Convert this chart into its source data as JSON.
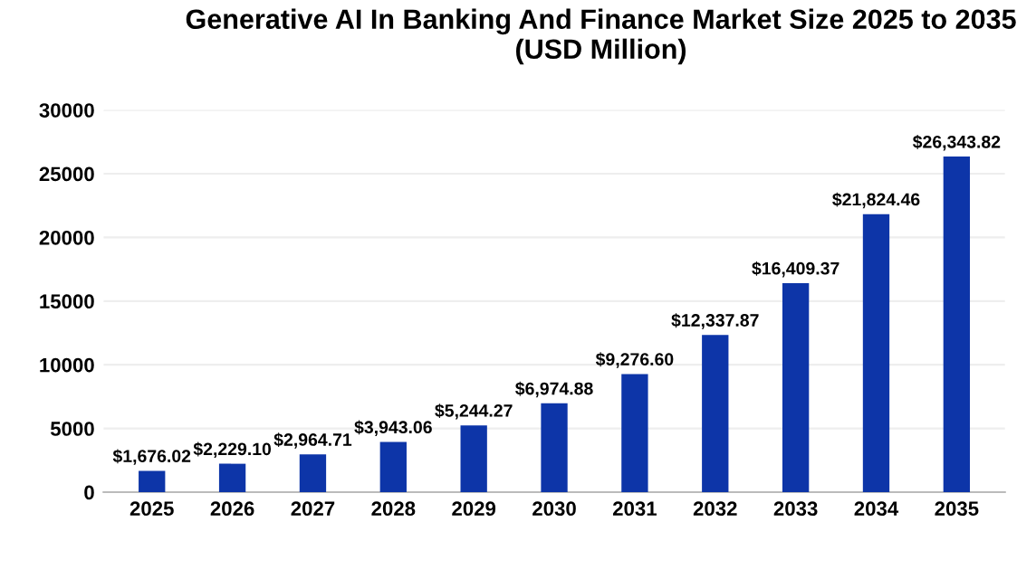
{
  "chart_data": {
    "type": "bar",
    "title": "Generative AI In Banking And Finance Market Size 2025 to 2035\n(USD Million)",
    "categories": [
      "2025",
      "2026",
      "2027",
      "2028",
      "2029",
      "2030",
      "2031",
      "2032",
      "2033",
      "2034",
      "2035"
    ],
    "values": [
      1676.02,
      2229.1,
      2964.71,
      3943.06,
      5244.27,
      6974.88,
      9276.6,
      12337.87,
      16409.37,
      21824.46,
      26343.82
    ],
    "value_labels": [
      "$1,676.02",
      "$2,229.10",
      "$2,964.71",
      "$3,943.06",
      "$5,244.27",
      "$6,974.88",
      "$9,276.60",
      "$12,337.87",
      "$16,409.37",
      "$21,824.46",
      "$26,343.82"
    ],
    "color": "#0d35a8",
    "ylim": [
      0,
      30000
    ],
    "yticks": [
      0,
      5000,
      10000,
      15000,
      20000,
      25000,
      30000
    ],
    "grid": "y"
  }
}
